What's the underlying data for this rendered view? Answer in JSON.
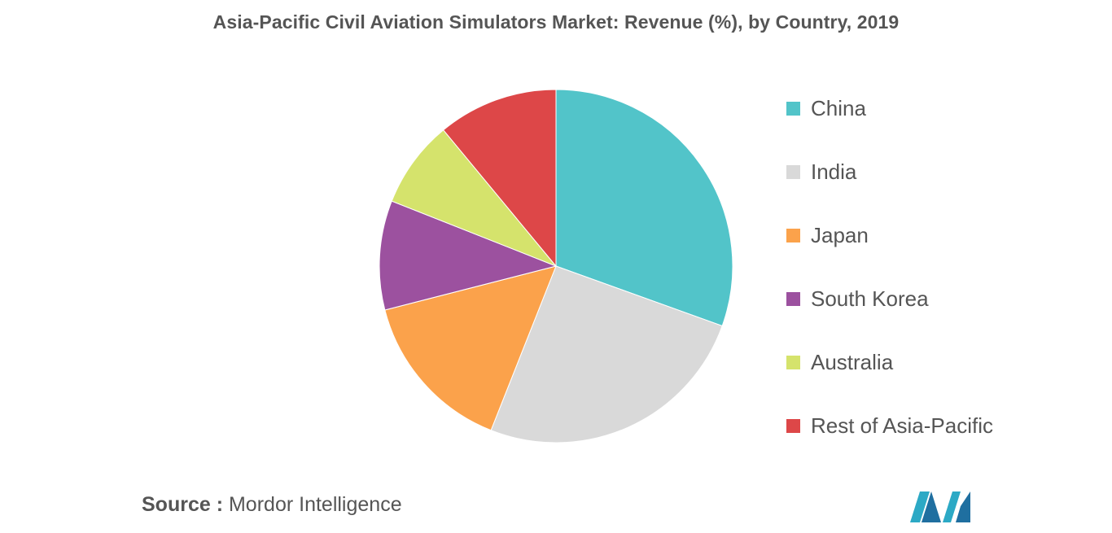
{
  "chart_data": {
    "type": "pie",
    "title": "Asia-Pacific Civil Aviation Simulators Market: Revenue (%), by Country, 2019",
    "categories": [
      "China",
      "India",
      "Japan",
      "South Korea",
      "Australia",
      "Rest of Asia-Pacific"
    ],
    "values": [
      30.5,
      25.5,
      15,
      10,
      8,
      11
    ],
    "colors": [
      "#52c4c9",
      "#d9d9d9",
      "#fba24b",
      "#9c519f",
      "#d5e36c",
      "#dd4748"
    ],
    "legend_position": "right"
  },
  "source": {
    "label": "Source :",
    "text": "Mordor Intelligence"
  },
  "logo": {
    "icon": "mordor-intelligence-logo-icon",
    "colors": [
      "#2ca9c5",
      "#1f6fa0"
    ]
  }
}
